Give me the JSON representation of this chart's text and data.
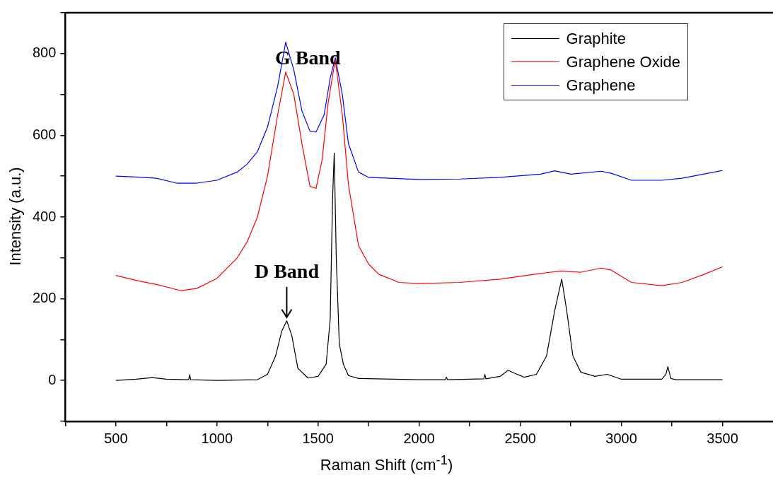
{
  "chart_data": {
    "type": "line",
    "xlabel": "Raman Shift (cm$^{-1}$)",
    "ylabel": "Intensity (a.u.)",
    "xlim": [
      250,
      3750
    ],
    "ylim": [
      -100,
      900
    ],
    "xticks": [
      {
        "value": 250,
        "label": null
      },
      500,
      {
        "value": 750,
        "label": null
      },
      1000,
      {
        "value": 1250,
        "label": null
      },
      1500,
      {
        "value": 1750,
        "label": null
      },
      2000,
      {
        "value": 2250,
        "label": null
      },
      2500,
      {
        "value": 2750,
        "label": null
      },
      3000,
      {
        "value": 3250,
        "label": null
      },
      3500
    ],
    "yticks": [
      {
        "value": -100,
        "label": null
      },
      0,
      {
        "value": 100,
        "label": null
      },
      200,
      {
        "value": 300,
        "label": null
      },
      400,
      {
        "value": 500,
        "label": null
      },
      600,
      {
        "value": 700,
        "label": null
      },
      800,
      {
        "value": 900,
        "label": null
      }
    ],
    "grid": false,
    "legend": "top right",
    "marker": "none",
    "line_style": "solid",
    "annotations": [
      {
        "text": "G Band",
        "x": 1585,
        "y": 785
      },
      {
        "text": "D Band",
        "x": 1345,
        "y": 146
      }
    ],
    "series": [
      {
        "name": "Graphite",
        "color": "#000000",
        "x": [
          500,
          600,
          680,
          750,
          860,
          865,
          870,
          1000,
          1200,
          1250,
          1290,
          1320,
          1345,
          1370,
          1400,
          1450,
          1500,
          1540,
          1560,
          1572,
          1580,
          1590,
          1605,
          1615,
          1625,
          1650,
          1700,
          2000,
          2130,
          2135,
          2140,
          2320,
          2325,
          2330,
          2400,
          2440,
          2470,
          2520,
          2580,
          2630,
          2670,
          2705,
          2730,
          2760,
          2800,
          2870,
          2930,
          3000,
          3200,
          3220,
          3230,
          3245,
          3270,
          3500
        ],
        "values": [
          0,
          3,
          7,
          3,
          2,
          14,
          2,
          0,
          2,
          15,
          60,
          120,
          146,
          110,
          30,
          6,
          10,
          40,
          150,
          450,
          557,
          300,
          90,
          65,
          40,
          12,
          5,
          2,
          2,
          8,
          2,
          4,
          15,
          4,
          10,
          25,
          18,
          8,
          15,
          60,
          170,
          248,
          170,
          60,
          20,
          10,
          15,
          3,
          3,
          15,
          34,
          5,
          2,
          2
        ]
      },
      {
        "name": "Graphene Oxide",
        "color": "#ff0000",
        "x": [
          500,
          600,
          700,
          820,
          900,
          1000,
          1100,
          1150,
          1200,
          1250,
          1300,
          1340,
          1380,
          1420,
          1460,
          1490,
          1520,
          1550,
          1585,
          1620,
          1650,
          1700,
          1750,
          1800,
          1900,
          2000,
          2200,
          2400,
          2600,
          2700,
          2800,
          2900,
          2950,
          3050,
          3200,
          3300,
          3400,
          3500
        ],
        "values": [
          257,
          245,
          235,
          220,
          225,
          250,
          300,
          340,
          400,
          500,
          650,
          755,
          700,
          580,
          475,
          470,
          540,
          680,
          785,
          650,
          480,
          330,
          285,
          260,
          240,
          237,
          240,
          248,
          262,
          268,
          265,
          275,
          270,
          240,
          232,
          240,
          258,
          278
        ]
      },
      {
        "name": "Graphene",
        "color": "#0000ff",
        "x": [
          500,
          600,
          700,
          800,
          900,
          1000,
          1100,
          1150,
          1200,
          1250,
          1300,
          1340,
          1380,
          1420,
          1460,
          1490,
          1530,
          1560,
          1585,
          1620,
          1650,
          1700,
          1750,
          2000,
          2200,
          2400,
          2600,
          2670,
          2750,
          2900,
          2950,
          3050,
          3200,
          3300,
          3500
        ],
        "values": [
          500,
          498,
          495,
          483,
          483,
          490,
          510,
          530,
          560,
          620,
          720,
          828,
          760,
          660,
          610,
          608,
          650,
          740,
          790,
          700,
          580,
          510,
          497,
          492,
          493,
          497,
          505,
          513,
          505,
          512,
          507,
          490,
          490,
          495,
          514
        ]
      }
    ]
  }
}
